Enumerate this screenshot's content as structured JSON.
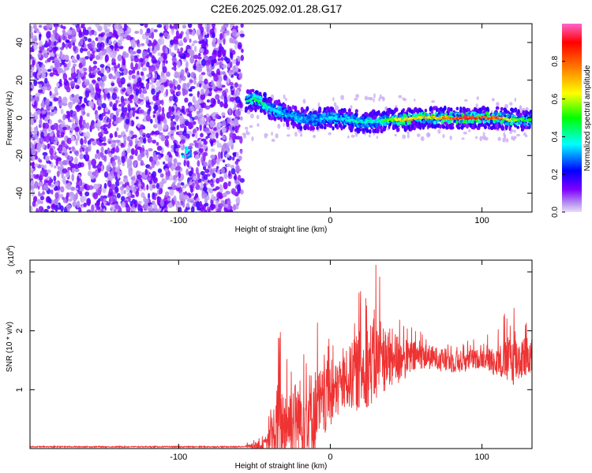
{
  "title": "C2E6.2025.092.01.28.G17",
  "chart_data": [
    {
      "type": "heatmap",
      "panel": "spectrogram",
      "xlabel": "Height of straight line (km)",
      "ylabel": "Frequency (Hz)",
      "xlim": [
        -198,
        133
      ],
      "ylim": [
        -50,
        50
      ],
      "xticks": [
        -100,
        0,
        100
      ],
      "xtick_labels": [
        "-100",
        "0",
        "100"
      ],
      "yticks": [
        -40,
        -20,
        0,
        20,
        40
      ],
      "ytick_labels": [
        "-40",
        "-20",
        "0",
        "20",
        "40"
      ],
      "grid": false,
      "colorbar": {
        "label": "Normalized spectral amplitude",
        "range": [
          0,
          1
        ],
        "ticks": [
          0,
          0.2,
          0.4,
          0.6,
          0.8
        ],
        "tick_labels": [
          "0.0",
          "0.2",
          "0.4",
          "0.6",
          "0.8"
        ],
        "colormap": [
          "#d8c8f0",
          "#7f00ff",
          "#0000ff",
          "#00ffff",
          "#00ff00",
          "#ffff00",
          "#ff8000",
          "#ff0000",
          "#ff66cc"
        ]
      },
      "noise_region_x": [
        -198,
        -58
      ],
      "signal_track": [
        {
          "x": -55,
          "f": 9,
          "amp": 0.45
        },
        {
          "x": -50,
          "f": 10,
          "amp": 0.5
        },
        {
          "x": -45,
          "f": 8,
          "amp": 0.45
        },
        {
          "x": -40,
          "f": 5,
          "amp": 0.4
        },
        {
          "x": -30,
          "f": 2,
          "amp": 0.35
        },
        {
          "x": -20,
          "f": 0,
          "amp": 0.35
        },
        {
          "x": -10,
          "f": -1,
          "amp": 0.3
        },
        {
          "x": 0,
          "f": 0,
          "amp": 0.4
        },
        {
          "x": 10,
          "f": -1,
          "amp": 0.4
        },
        {
          "x": 20,
          "f": -2,
          "amp": 0.4
        },
        {
          "x": 30,
          "f": -2,
          "amp": 0.4
        },
        {
          "x": 40,
          "f": -1,
          "amp": 0.6
        },
        {
          "x": 50,
          "f": -1,
          "amp": 0.75
        },
        {
          "x": 60,
          "f": 0,
          "amp": 0.75
        },
        {
          "x": 70,
          "f": 0,
          "amp": 0.75
        },
        {
          "x": 80,
          "f": 0,
          "amp": 0.9
        },
        {
          "x": 90,
          "f": 0,
          "amp": 0.9
        },
        {
          "x": 100,
          "f": 0,
          "amp": 0.9
        },
        {
          "x": 110,
          "f": 0,
          "amp": 0.85
        },
        {
          "x": 120,
          "f": -1,
          "amp": 0.6
        },
        {
          "x": 133,
          "f": -1,
          "amp": 0.5
        }
      ]
    },
    {
      "type": "line",
      "panel": "snr",
      "xlabel": "Height of straight line (km)",
      "ylabel": "SNR (10 * v/v)",
      "y_multiplier": "(x10^4)",
      "xlim": [
        -198,
        133
      ],
      "ylim": [
        0,
        3.2
      ],
      "xticks": [
        -100,
        0,
        100
      ],
      "xtick_labels": [
        "-100",
        "0",
        "100"
      ],
      "yticks": [
        1,
        2,
        3
      ],
      "ytick_labels": [
        "1",
        "2",
        "3"
      ],
      "grid": false,
      "series": [
        {
          "color": "#ee3333",
          "x": [
            -198,
            -150,
            -100,
            -60,
            -45,
            -40,
            -35,
            -30,
            -20,
            -10,
            0,
            10,
            20,
            25,
            30,
            35,
            40,
            50,
            60,
            70,
            80,
            90,
            100,
            110,
            120,
            133
          ],
          "mean": [
            0.03,
            0.03,
            0.03,
            0.03,
            0.05,
            0.15,
            0.4,
            0.5,
            0.6,
            0.7,
            0.9,
            1.2,
            1.4,
            1.5,
            1.55,
            1.6,
            1.55,
            1.55,
            1.6,
            1.55,
            1.5,
            1.5,
            1.55,
            1.5,
            1.55,
            1.6
          ],
          "max": [
            0.05,
            0.05,
            0.05,
            0.05,
            0.2,
            0.6,
            2.2,
            1.9,
            2.1,
            2.4,
            2.0,
            2.3,
            2.95,
            3.1,
            3.25,
            2.9,
            2.8,
            2.3,
            2.1,
            2.0,
            1.95,
            1.9,
            1.9,
            2.1,
            2.55,
            2.3
          ]
        }
      ]
    }
  ]
}
